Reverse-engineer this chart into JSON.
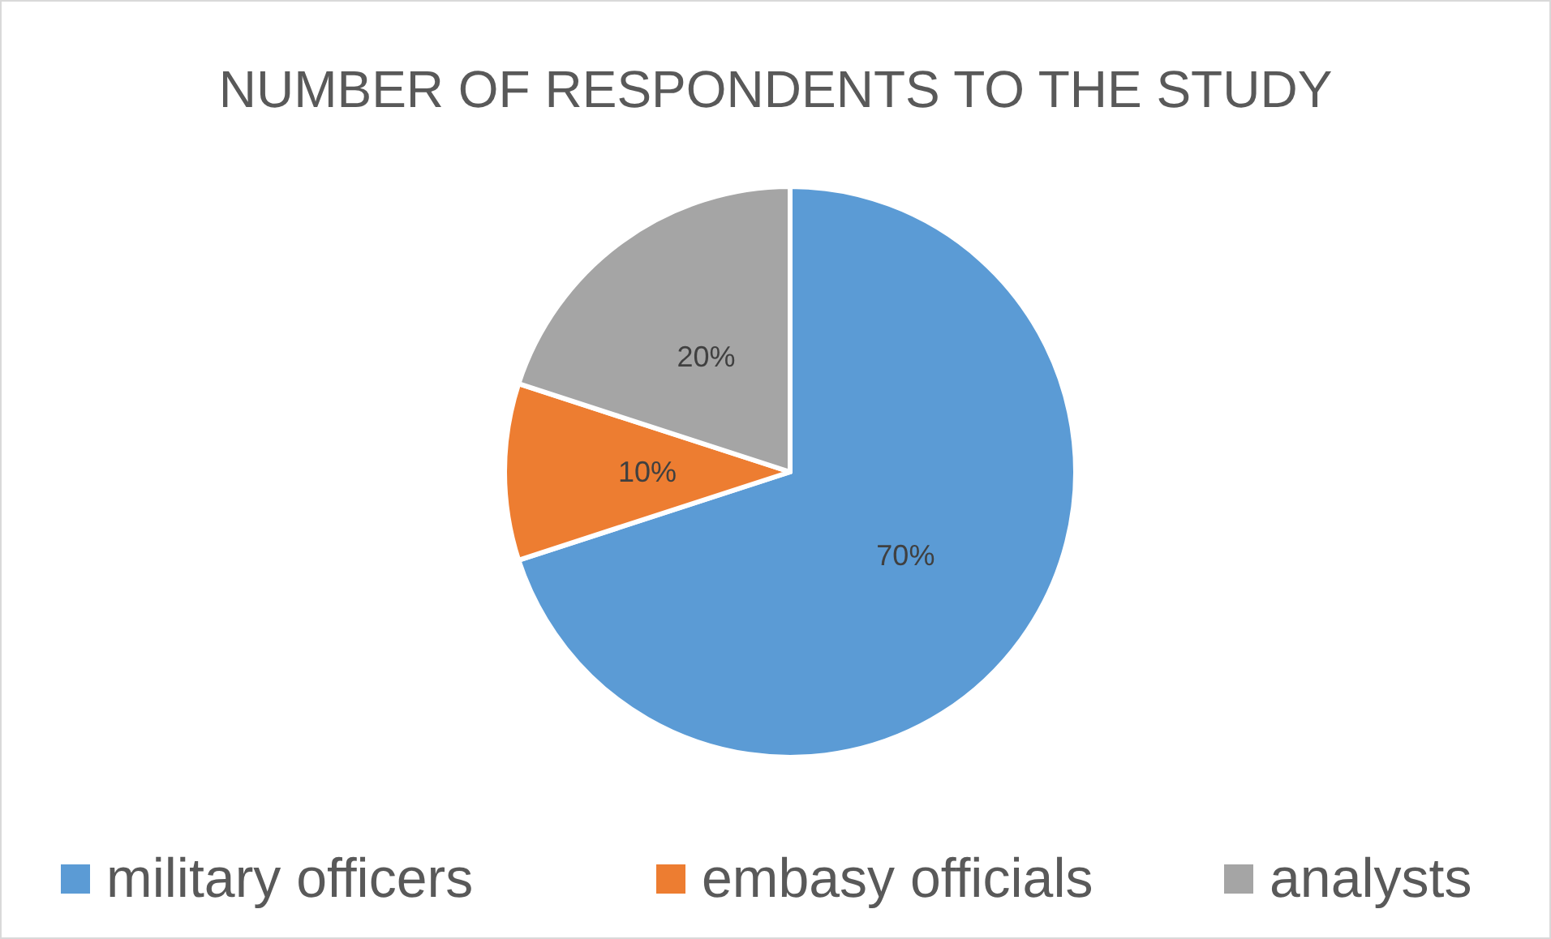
{
  "chart_data": {
    "type": "pie",
    "title": "NUMBER OF RESPONDENTS TO THE STUDY",
    "categories": [
      "military officers",
      "embasy officials",
      "analysts"
    ],
    "values": [
      70,
      10,
      20
    ],
    "colors": [
      "#5b9bd5",
      "#ed7d31",
      "#a5a5a5"
    ],
    "value_labels": [
      "70%",
      "10%",
      "20%"
    ],
    "legend": "bottom"
  }
}
